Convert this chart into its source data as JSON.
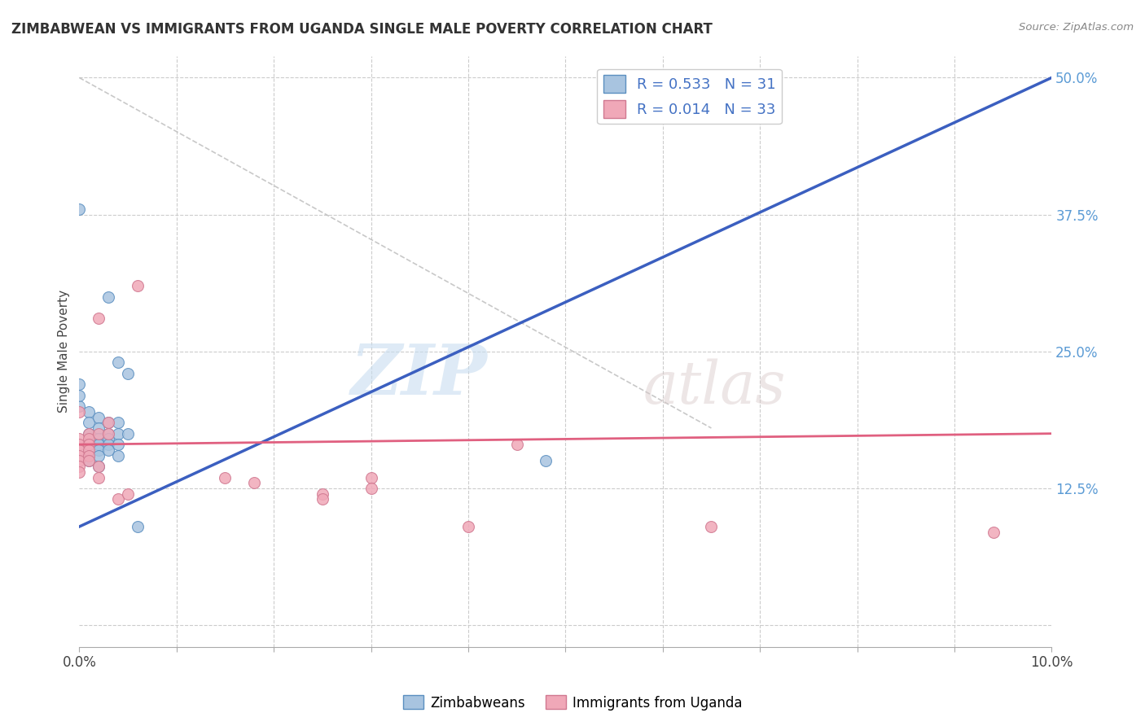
{
  "title": "ZIMBABWEAN VS IMMIGRANTS FROM UGANDA SINGLE MALE POVERTY CORRELATION CHART",
  "source": "Source: ZipAtlas.com",
  "ylabel": "Single Male Poverty",
  "xlim": [
    0.0,
    0.1
  ],
  "ylim": [
    -0.02,
    0.52
  ],
  "xticks": [
    0.0,
    0.01,
    0.02,
    0.03,
    0.04,
    0.05,
    0.06,
    0.07,
    0.08,
    0.09,
    0.1
  ],
  "xticklabels": [
    "0.0%",
    "",
    "",
    "",
    "",
    "",
    "",
    "",
    "",
    "",
    "10.0%"
  ],
  "yticks": [
    0.0,
    0.125,
    0.25,
    0.375,
    0.5
  ],
  "yticklabels": [
    "",
    "12.5%",
    "25.0%",
    "37.5%",
    "50.0%"
  ],
  "blue_color": "#a8c4e0",
  "pink_color": "#f0a8b8",
  "blue_edge_color": "#5b8fc0",
  "pink_edge_color": "#d07890",
  "blue_line_color": "#3b5fc0",
  "pink_line_color": "#e06080",
  "blue_scatter": [
    [
      0.0,
      0.2
    ],
    [
      0.0,
      0.38
    ],
    [
      0.003,
      0.3
    ],
    [
      0.0,
      0.22
    ],
    [
      0.0,
      0.21
    ],
    [
      0.001,
      0.195
    ],
    [
      0.001,
      0.185
    ],
    [
      0.001,
      0.175
    ],
    [
      0.002,
      0.19
    ],
    [
      0.002,
      0.18
    ],
    [
      0.002,
      0.17
    ],
    [
      0.002,
      0.165
    ],
    [
      0.002,
      0.16
    ],
    [
      0.003,
      0.185
    ],
    [
      0.003,
      0.175
    ],
    [
      0.003,
      0.17
    ],
    [
      0.003,
      0.165
    ],
    [
      0.003,
      0.16
    ],
    [
      0.004,
      0.24
    ],
    [
      0.004,
      0.185
    ],
    [
      0.004,
      0.175
    ],
    [
      0.004,
      0.165
    ],
    [
      0.004,
      0.155
    ],
    [
      0.005,
      0.23
    ],
    [
      0.005,
      0.175
    ],
    [
      0.001,
      0.155
    ],
    [
      0.001,
      0.15
    ],
    [
      0.002,
      0.155
    ],
    [
      0.002,
      0.145
    ],
    [
      0.006,
      0.09
    ],
    [
      0.048,
      0.15
    ]
  ],
  "pink_scatter": [
    [
      0.0,
      0.195
    ],
    [
      0.0,
      0.17
    ],
    [
      0.0,
      0.165
    ],
    [
      0.0,
      0.16
    ],
    [
      0.0,
      0.155
    ],
    [
      0.0,
      0.15
    ],
    [
      0.0,
      0.145
    ],
    [
      0.0,
      0.14
    ],
    [
      0.001,
      0.175
    ],
    [
      0.001,
      0.17
    ],
    [
      0.001,
      0.165
    ],
    [
      0.001,
      0.16
    ],
    [
      0.001,
      0.155
    ],
    [
      0.001,
      0.15
    ],
    [
      0.002,
      0.28
    ],
    [
      0.002,
      0.175
    ],
    [
      0.002,
      0.145
    ],
    [
      0.002,
      0.135
    ],
    [
      0.003,
      0.185
    ],
    [
      0.003,
      0.175
    ],
    [
      0.004,
      0.115
    ],
    [
      0.005,
      0.12
    ],
    [
      0.006,
      0.31
    ],
    [
      0.015,
      0.135
    ],
    [
      0.018,
      0.13
    ],
    [
      0.025,
      0.12
    ],
    [
      0.025,
      0.115
    ],
    [
      0.03,
      0.135
    ],
    [
      0.03,
      0.125
    ],
    [
      0.04,
      0.09
    ],
    [
      0.045,
      0.165
    ],
    [
      0.065,
      0.09
    ],
    [
      0.094,
      0.085
    ]
  ],
  "blue_line_x": [
    0.0,
    0.1
  ],
  "blue_line_y": [
    0.09,
    0.5
  ],
  "pink_line_x": [
    0.0,
    0.1
  ],
  "pink_line_y": [
    0.165,
    0.175
  ],
  "diag_line_x": [
    0.0,
    0.065
  ],
  "diag_line_y": [
    0.5,
    0.18
  ],
  "legend_R_blue_text": "R = 0.533   N = 31",
  "legend_R_pink_text": "R = 0.014   N = 33",
  "legend_blue_label": "Zimbabweans",
  "legend_pink_label": "Immigrants from Uganda",
  "watermark_zip": "ZIP",
  "watermark_atlas": "atlas",
  "background_color": "#ffffff",
  "grid_color": "#cccccc",
  "marker_size": 100
}
